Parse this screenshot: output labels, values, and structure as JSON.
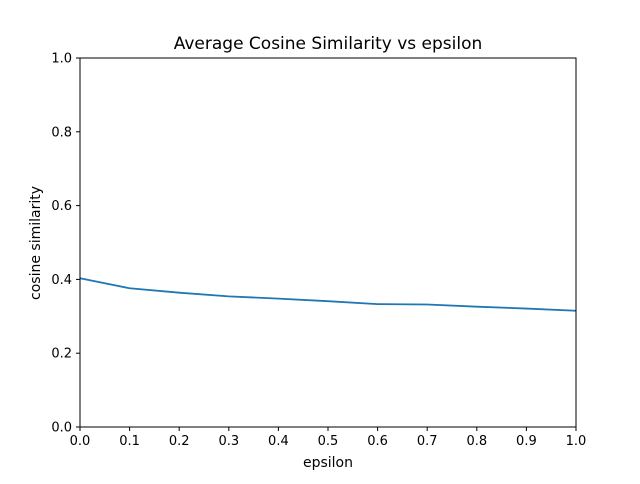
{
  "chart_data": {
    "type": "line",
    "title": "Average Cosine Similarity vs epsilon",
    "xlabel": "epsilon",
    "ylabel": "cosine similarity",
    "xlim": [
      0.0,
      1.0
    ],
    "ylim": [
      0.0,
      1.0
    ],
    "x_ticks": [
      "0.0",
      "0.1",
      "0.2",
      "0.3",
      "0.4",
      "0.5",
      "0.6",
      "0.7",
      "0.8",
      "0.9",
      "1.0"
    ],
    "y_ticks": [
      "0.0",
      "0.2",
      "0.4",
      "0.6",
      "0.8",
      "1.0"
    ],
    "grid": false,
    "series": [
      {
        "color": "#1f77b4",
        "x": [
          0.0,
          0.1,
          0.2,
          0.3,
          0.4,
          0.5,
          0.6,
          0.7,
          0.8,
          0.9,
          1.0
        ],
        "y": [
          0.403,
          0.376,
          0.364,
          0.354,
          0.348,
          0.341,
          0.333,
          0.332,
          0.326,
          0.321,
          0.315
        ]
      }
    ]
  }
}
